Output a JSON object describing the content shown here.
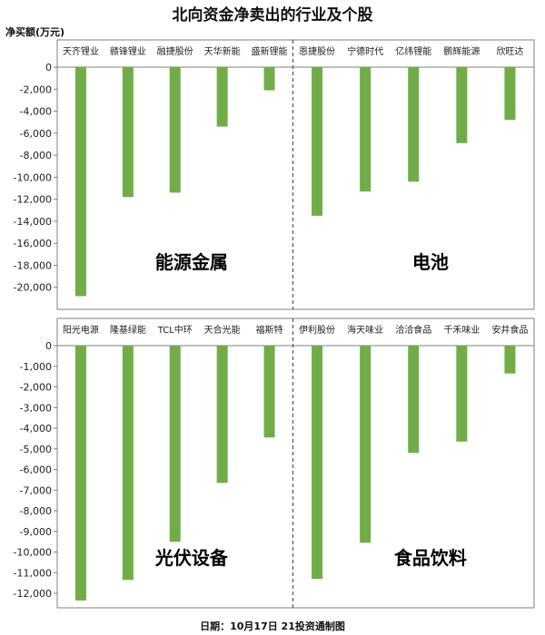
{
  "title": "北向资金净卖出的行业及个股",
  "ylabel": "净买额(万元)",
  "footer": "日期：10月17日 21投资通制图",
  "colors": {
    "bar": "#71ad47",
    "axis": "#7f7f7f",
    "divider": "#444444"
  },
  "chart_data": [
    {
      "type": "bar",
      "ylabel": "净买额(万元)",
      "ylim": [
        -22000,
        0
      ],
      "yticks": [
        0,
        -2000,
        -4000,
        -6000,
        -8000,
        -10000,
        -12000,
        -14000,
        -16000,
        -18000,
        -20000
      ],
      "ytick_labels": [
        "0",
        "-2,000",
        "-4,000",
        "-6,000",
        "-8,000",
        "-10,000",
        "-12,000",
        "-14,000",
        "-16,000",
        "-18,000",
        "-20,000"
      ],
      "groups": [
        {
          "label": "能源金属",
          "categories": [
            "天齐锂业",
            "赣锋锂业",
            "融捷股份",
            "天华新能",
            "盛新锂能"
          ],
          "values": [
            -20800,
            -11800,
            -11400,
            -5400,
            -2100
          ]
        },
        {
          "label": "电池",
          "categories": [
            "恩捷股份",
            "宁德时代",
            "亿纬锂能",
            "鹏辉能源",
            "欣旺达"
          ],
          "values": [
            -13500,
            -11300,
            -10400,
            -6900,
            -4800
          ]
        }
      ]
    },
    {
      "type": "bar",
      "ylabel": "净买额(万元)",
      "ylim": [
        -12700,
        0
      ],
      "yticks": [
        0,
        -1000,
        -2000,
        -3000,
        -4000,
        -5000,
        -6000,
        -7000,
        -8000,
        -9000,
        -10000,
        -11000,
        -12000
      ],
      "ytick_labels": [
        "0",
        "-1,000",
        "-2,000",
        "-3,000",
        "-4,000",
        "-5,000",
        "-6,000",
        "-7,000",
        "-8,000",
        "-9,000",
        "-10,000",
        "-11,000",
        "-12,000"
      ],
      "groups": [
        {
          "label": "光伏设备",
          "categories": [
            "阳光电源",
            "隆基绿能",
            "TCL中环",
            "天合光能",
            "福斯特"
          ],
          "values": [
            -12350,
            -11350,
            -9500,
            -6650,
            -4450
          ]
        },
        {
          "label": "食品饮料",
          "categories": [
            "伊利股份",
            "海天味业",
            "洽洽食品",
            "千禾味业",
            "安井食品"
          ],
          "values": [
            -11300,
            -9550,
            -5200,
            -4650,
            -1350
          ]
        }
      ]
    }
  ]
}
